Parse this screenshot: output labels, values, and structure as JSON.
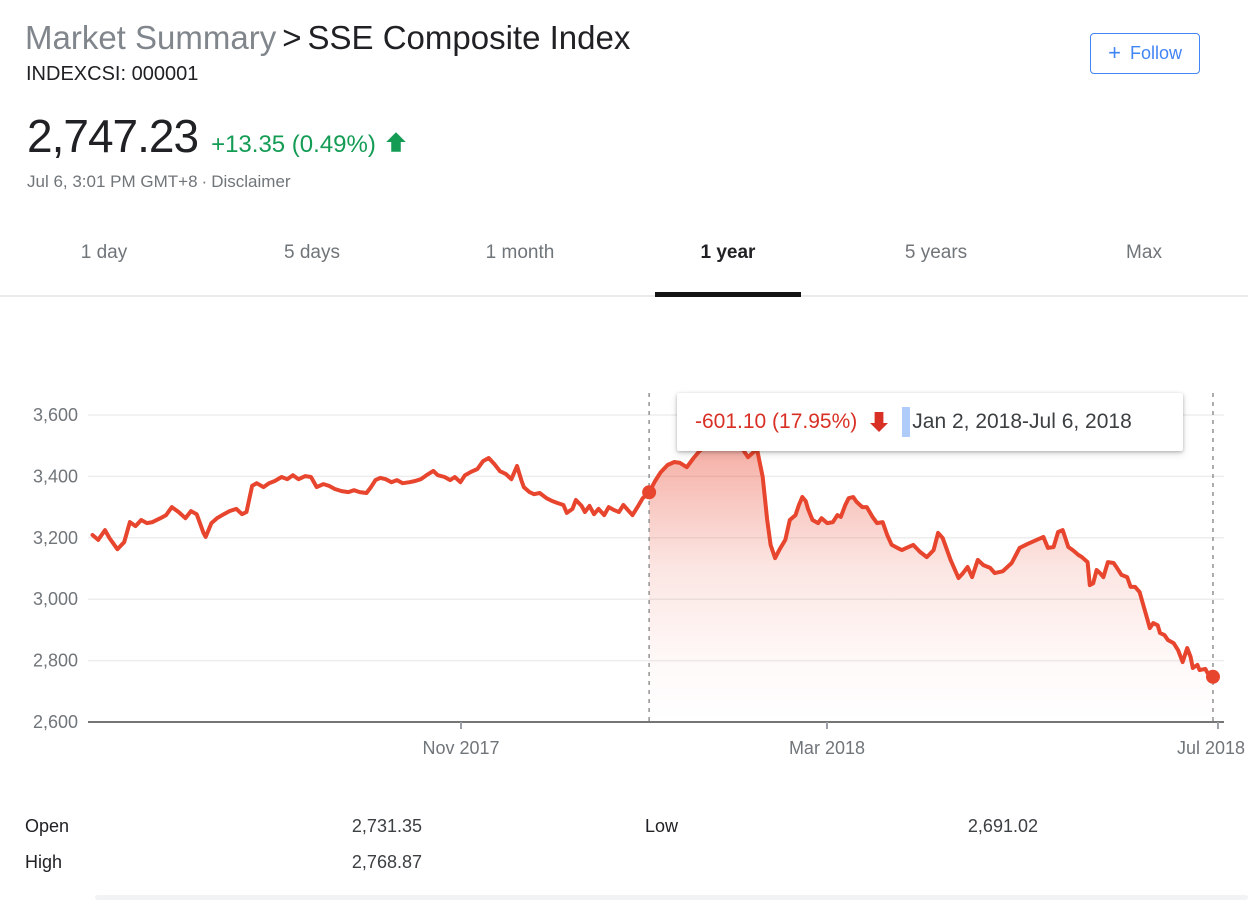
{
  "header": {
    "breadcrumb_root": "Market Summary",
    "breadcrumb_separator": ">",
    "title": "SSE Composite Index",
    "ticker": "INDEXCSI: 000001",
    "follow_button": {
      "plus": "+",
      "label": "Follow",
      "color": "#4285f4"
    }
  },
  "quote": {
    "price": "2,747.23",
    "change": "+13.35 (0.49%)",
    "direction": "up",
    "change_color": "#149c55",
    "timestamp": "Jul 6, 3:01 PM GMT+8",
    "separator": "·",
    "disclaimer": "Disclaimer"
  },
  "range_tabs": {
    "items": [
      {
        "label": "1 day",
        "active": false
      },
      {
        "label": "5 days",
        "active": false
      },
      {
        "label": "1 month",
        "active": false
      },
      {
        "label": "1 year",
        "active": true
      },
      {
        "label": "5 years",
        "active": false
      },
      {
        "label": "Max",
        "active": false
      }
    ]
  },
  "tooltip": {
    "change_text": "-601.10 (17.95%)",
    "change_color": "#d93025",
    "caret_color": "#aecbfa",
    "range_text": "Jan 2, 2018-Jul 6, 2018"
  },
  "chart_data": {
    "type": "line",
    "series_name": "SSE Composite Index",
    "line_color": "#e8452e",
    "grid_color": "#ededed",
    "baseline_color": "#757575",
    "dashed_guide_color": "#999999",
    "ylim": [
      2600,
      3600
    ],
    "yticks": [
      {
        "value": 3600,
        "label": "3,600"
      },
      {
        "value": 3400,
        "label": "3,400"
      },
      {
        "value": 3200,
        "label": "3,200"
      },
      {
        "value": 3000,
        "label": "3,000"
      },
      {
        "value": 2800,
        "label": "2,800"
      },
      {
        "value": 2600,
        "label": "2,600"
      }
    ],
    "xticks": [
      {
        "x": 0.3295,
        "label": "Nov 2017"
      },
      {
        "x": 0.6528,
        "label": "Mar 2018"
      },
      {
        "x": 0.9982,
        "label": "Jul 2018"
      }
    ],
    "markers": [
      {
        "x": 0.4957,
        "value": 3348.33,
        "date": "Jan 2, 2018"
      },
      {
        "x": 0.9938,
        "value": 2747.23,
        "date": "Jul 6, 2018"
      }
    ],
    "highlight_range": [
      0.4957,
      0.9938
    ],
    "series": [
      {
        "name": "SSE Composite Index",
        "points": [
          [
            0.004,
            3209
          ],
          [
            0.009,
            3193
          ],
          [
            0.015,
            3225
          ],
          [
            0.019,
            3199
          ],
          [
            0.026,
            3163
          ],
          [
            0.032,
            3186
          ],
          [
            0.037,
            3251
          ],
          [
            0.042,
            3238
          ],
          [
            0.047,
            3258
          ],
          [
            0.052,
            3248
          ],
          [
            0.057,
            3251
          ],
          [
            0.064,
            3264
          ],
          [
            0.069,
            3274
          ],
          [
            0.074,
            3300
          ],
          [
            0.08,
            3284
          ],
          [
            0.086,
            3264
          ],
          [
            0.091,
            3287
          ],
          [
            0.096,
            3277
          ],
          [
            0.102,
            3216
          ],
          [
            0.104,
            3203
          ],
          [
            0.109,
            3248
          ],
          [
            0.114,
            3264
          ],
          [
            0.12,
            3277
          ],
          [
            0.125,
            3287
          ],
          [
            0.131,
            3294
          ],
          [
            0.136,
            3277
          ],
          [
            0.14,
            3284
          ],
          [
            0.145,
            3369
          ],
          [
            0.149,
            3378
          ],
          [
            0.155,
            3365
          ],
          [
            0.16,
            3378
          ],
          [
            0.165,
            3385
          ],
          [
            0.171,
            3398
          ],
          [
            0.176,
            3391
          ],
          [
            0.181,
            3404
          ],
          [
            0.186,
            3391
          ],
          [
            0.192,
            3401
          ],
          [
            0.197,
            3398
          ],
          [
            0.202,
            3365
          ],
          [
            0.208,
            3375
          ],
          [
            0.213,
            3369
          ],
          [
            0.218,
            3359
          ],
          [
            0.224,
            3352
          ],
          [
            0.23,
            3349
          ],
          [
            0.235,
            3355
          ],
          [
            0.24,
            3349
          ],
          [
            0.246,
            3346
          ],
          [
            0.25,
            3365
          ],
          [
            0.254,
            3388
          ],
          [
            0.258,
            3395
          ],
          [
            0.263,
            3391
          ],
          [
            0.268,
            3381
          ],
          [
            0.273,
            3388
          ],
          [
            0.278,
            3378
          ],
          [
            0.284,
            3381
          ],
          [
            0.289,
            3385
          ],
          [
            0.294,
            3391
          ],
          [
            0.299,
            3404
          ],
          [
            0.305,
            3418
          ],
          [
            0.309,
            3404
          ],
          [
            0.315,
            3398
          ],
          [
            0.32,
            3388
          ],
          [
            0.324,
            3398
          ],
          [
            0.329,
            3381
          ],
          [
            0.333,
            3404
          ],
          [
            0.338,
            3414
          ],
          [
            0.344,
            3424
          ],
          [
            0.349,
            3450
          ],
          [
            0.354,
            3460
          ],
          [
            0.359,
            3440
          ],
          [
            0.364,
            3417
          ],
          [
            0.369,
            3408
          ],
          [
            0.374,
            3391
          ],
          [
            0.379,
            3434
          ],
          [
            0.383,
            3385
          ],
          [
            0.385,
            3365
          ],
          [
            0.39,
            3349
          ],
          [
            0.394,
            3342
          ],
          [
            0.399,
            3346
          ],
          [
            0.405,
            3329
          ],
          [
            0.41,
            3320
          ],
          [
            0.415,
            3313
          ],
          [
            0.42,
            3307
          ],
          [
            0.423,
            3281
          ],
          [
            0.428,
            3294
          ],
          [
            0.431,
            3323
          ],
          [
            0.436,
            3304
          ],
          [
            0.439,
            3284
          ],
          [
            0.443,
            3304
          ],
          [
            0.447,
            3277
          ],
          [
            0.451,
            3294
          ],
          [
            0.456,
            3274
          ],
          [
            0.46,
            3300
          ],
          [
            0.465,
            3290
          ],
          [
            0.469,
            3284
          ],
          [
            0.473,
            3307
          ],
          [
            0.477,
            3290
          ],
          [
            0.481,
            3274
          ],
          [
            0.486,
            3304
          ],
          [
            0.49,
            3329
          ],
          [
            0.4957,
            3348
          ],
          [
            0.501,
            3385
          ],
          [
            0.506,
            3414
          ],
          [
            0.512,
            3437
          ],
          [
            0.518,
            3447
          ],
          [
            0.523,
            3444
          ],
          [
            0.529,
            3430
          ],
          [
            0.535,
            3460
          ],
          [
            0.541,
            3486
          ],
          [
            0.547,
            3496
          ],
          [
            0.553,
            3505
          ],
          [
            0.559,
            3512
          ],
          [
            0.565,
            3518
          ],
          [
            0.57,
            3524
          ],
          [
            0.576,
            3505
          ],
          [
            0.58,
            3479
          ],
          [
            0.583,
            3463
          ],
          [
            0.587,
            3476
          ],
          [
            0.591,
            3489
          ],
          [
            0.596,
            3398
          ],
          [
            0.6,
            3258
          ],
          [
            0.603,
            3177
          ],
          [
            0.607,
            3134
          ],
          [
            0.611,
            3163
          ],
          [
            0.616,
            3193
          ],
          [
            0.62,
            3258
          ],
          [
            0.625,
            3274
          ],
          [
            0.628,
            3307
          ],
          [
            0.631,
            3333
          ],
          [
            0.634,
            3320
          ],
          [
            0.636,
            3294
          ],
          [
            0.64,
            3258
          ],
          [
            0.645,
            3248
          ],
          [
            0.648,
            3264
          ],
          [
            0.653,
            3248
          ],
          [
            0.658,
            3251
          ],
          [
            0.662,
            3274
          ],
          [
            0.665,
            3268
          ],
          [
            0.669,
            3307
          ],
          [
            0.672,
            3329
          ],
          [
            0.676,
            3333
          ],
          [
            0.679,
            3317
          ],
          [
            0.684,
            3300
          ],
          [
            0.688,
            3300
          ],
          [
            0.693,
            3268
          ],
          [
            0.697,
            3248
          ],
          [
            0.702,
            3251
          ],
          [
            0.706,
            3209
          ],
          [
            0.71,
            3177
          ],
          [
            0.715,
            3167
          ],
          [
            0.719,
            3160
          ],
          [
            0.723,
            3167
          ],
          [
            0.729,
            3177
          ],
          [
            0.735,
            3154
          ],
          [
            0.741,
            3137
          ],
          [
            0.747,
            3160
          ],
          [
            0.751,
            3216
          ],
          [
            0.755,
            3199
          ],
          [
            0.762,
            3128
          ],
          [
            0.769,
            3069
          ],
          [
            0.773,
            3085
          ],
          [
            0.777,
            3105
          ],
          [
            0.781,
            3072
          ],
          [
            0.786,
            3128
          ],
          [
            0.791,
            3111
          ],
          [
            0.797,
            3102
          ],
          [
            0.801,
            3085
          ],
          [
            0.808,
            3091
          ],
          [
            0.816,
            3118
          ],
          [
            0.823,
            3167
          ],
          [
            0.83,
            3180
          ],
          [
            0.838,
            3193
          ],
          [
            0.844,
            3203
          ],
          [
            0.848,
            3167
          ],
          [
            0.853,
            3170
          ],
          [
            0.857,
            3219
          ],
          [
            0.861,
            3225
          ],
          [
            0.866,
            3170
          ],
          [
            0.87,
            3160
          ],
          [
            0.875,
            3144
          ],
          [
            0.878,
            3137
          ],
          [
            0.883,
            3121
          ],
          [
            0.885,
            3046
          ],
          [
            0.888,
            3052
          ],
          [
            0.891,
            3095
          ],
          [
            0.894,
            3085
          ],
          [
            0.897,
            3072
          ],
          [
            0.901,
            3121
          ],
          [
            0.906,
            3118
          ],
          [
            0.909,
            3102
          ],
          [
            0.913,
            3079
          ],
          [
            0.918,
            3072
          ],
          [
            0.921,
            3040
          ],
          [
            0.925,
            3040
          ],
          [
            0.929,
            3023
          ],
          [
            0.936,
            2932
          ],
          [
            0.938,
            2906
          ],
          [
            0.941,
            2922
          ],
          [
            0.945,
            2915
          ],
          [
            0.947,
            2890
          ],
          [
            0.951,
            2883
          ],
          [
            0.954,
            2867
          ],
          [
            0.959,
            2857
          ],
          [
            0.963,
            2834
          ],
          [
            0.967,
            2795
          ],
          [
            0.971,
            2841
          ],
          [
            0.974,
            2812
          ],
          [
            0.976,
            2776
          ],
          [
            0.98,
            2786
          ],
          [
            0.982,
            2769
          ],
          [
            0.987,
            2773
          ],
          [
            0.989,
            2760
          ],
          [
            0.9938,
            2747
          ]
        ]
      }
    ]
  },
  "stats": {
    "left": [
      {
        "label": "Open",
        "value": "2,731.35"
      },
      {
        "label": "High",
        "value": "2,768.87"
      }
    ],
    "right": [
      {
        "label": "Low",
        "value": "2,691.02"
      }
    ]
  }
}
